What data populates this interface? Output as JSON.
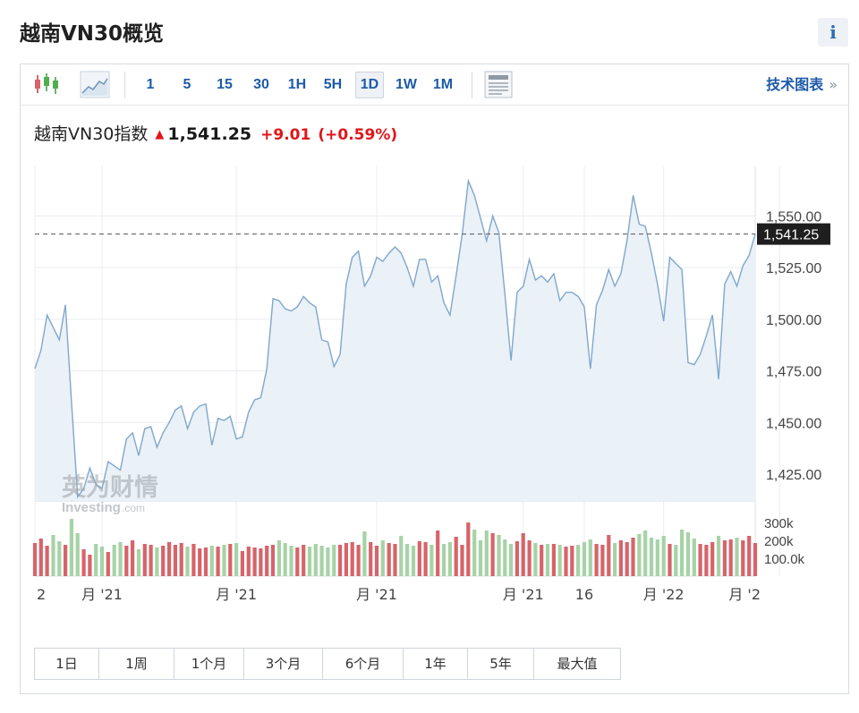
{
  "page": {
    "title": "越南VN30概览",
    "info_label": "i"
  },
  "toolbar": {
    "periods": [
      "1",
      "5",
      "15",
      "30",
      "1H",
      "5H",
      "1D",
      "1W",
      "1M"
    ],
    "active_period": "1D",
    "tech_link_label": "技术图表",
    "tech_link_chevron": "»",
    "icons": [
      "candlestick-icon",
      "area-chart-icon",
      "table-view-icon"
    ]
  },
  "quote": {
    "name": "越南VN30指数",
    "direction_icon": "up-arrow-icon",
    "last": "1,541.25",
    "change": "+9.01",
    "change_pct": "(+0.59%)",
    "color_up": "#e0161b"
  },
  "watermark": {
    "cn": "英为财情",
    "en": "Investing",
    "suffix": ".com"
  },
  "range_buttons": [
    "1日",
    "1周",
    "1个月",
    "3个月",
    "6个月",
    "1年",
    "5年",
    "最大值"
  ],
  "chart_data": {
    "type": "area",
    "ylim": [
      1412,
      1574
    ],
    "price_ticks": [
      {
        "value": 1550,
        "label": "1,550.00"
      },
      {
        "value": 1525,
        "label": "1,525.00"
      },
      {
        "value": 1500,
        "label": "1,500.00"
      },
      {
        "value": 1475,
        "label": "1,475.00"
      },
      {
        "value": 1450,
        "label": "1,450.00"
      },
      {
        "value": 1425,
        "label": "1,425.00"
      }
    ],
    "last_price": 1541.25,
    "last_price_label": "1,541.25",
    "x_labels": [
      {
        "index": 0,
        "label": "2"
      },
      {
        "index": 11,
        "label": "月 '21"
      },
      {
        "index": 33,
        "label": "月 '21"
      },
      {
        "index": 56,
        "label": "月 '21"
      },
      {
        "index": 80,
        "label": "月 '21"
      },
      {
        "index": 90,
        "label": "16"
      },
      {
        "index": 103,
        "label": "月 '22"
      },
      {
        "index": 122,
        "label": "月 '2"
      }
    ],
    "series": [
      {
        "values": [
          1476,
          1485,
          1502,
          1496,
          1490,
          1507,
          1460,
          1414,
          1418,
          1428,
          1420,
          1418,
          1431,
          1429,
          1427,
          1442,
          1445,
          1434,
          1447,
          1448,
          1438,
          1445,
          1450,
          1456,
          1458,
          1447,
          1455,
          1458,
          1459,
          1439,
          1452,
          1451,
          1453,
          1442,
          1443,
          1455,
          1461,
          1462,
          1476,
          1510,
          1509,
          1505,
          1504,
          1506,
          1511,
          1508,
          1506,
          1490,
          1489,
          1477,
          1483,
          1517,
          1530,
          1533,
          1516,
          1521,
          1530,
          1528,
          1532,
          1535,
          1532,
          1525,
          1516,
          1529,
          1529,
          1518,
          1521,
          1508,
          1502,
          1521,
          1541,
          1567,
          1560,
          1549,
          1538,
          1550,
          1542,
          1512,
          1480,
          1513,
          1516,
          1529,
          1519,
          1521,
          1518,
          1522,
          1509,
          1513,
          1513,
          1511,
          1506,
          1476,
          1507,
          1514,
          1524,
          1516,
          1522,
          1538,
          1560,
          1546,
          1545,
          1532,
          1517,
          1499,
          1530,
          1527,
          1524,
          1479,
          1478,
          1483,
          1492,
          1502,
          1471,
          1517,
          1523,
          1516,
          1526,
          1531,
          1541.25
        ]
      },
      {
        "name": "volume",
        "values": [
          185,
          210,
          170,
          230,
          195,
          175,
          320,
          240,
          150,
          120,
          180,
          165,
          135,
          175,
          190,
          170,
          200,
          150,
          180,
          175,
          160,
          170,
          190,
          175,
          185,
          165,
          180,
          155,
          160,
          170,
          165,
          175,
          180,
          185,
          140,
          165,
          160,
          155,
          170,
          175,
          200,
          185,
          170,
          160,
          175,
          165,
          180,
          170,
          160,
          175,
          175,
          185,
          190,
          175,
          250,
          190,
          170,
          200,
          185,
          180,
          225,
          180,
          170,
          195,
          190,
          175,
          255,
          180,
          190,
          220,
          175,
          300,
          260,
          200,
          255,
          240,
          230,
          205,
          180,
          195,
          240,
          200,
          185,
          175,
          180,
          180,
          175,
          165,
          170,
          175,
          190,
          205,
          180,
          175,
          230,
          185,
          200,
          190,
          215,
          235,
          255,
          215,
          205,
          225,
          180,
          175,
          260,
          245,
          210,
          180,
          175,
          190,
          225,
          200,
          205,
          215,
          200,
          225,
          185
        ]
      }
    ],
    "volume_ticks": [
      {
        "value": 300,
        "label": "300k"
      },
      {
        "value": 200,
        "label": "200k"
      },
      {
        "value": 100,
        "label": "100.0k"
      }
    ],
    "volume_max": 360,
    "colors": {
      "line": "#7fa7cc",
      "fill": "#eaf1f7",
      "vol_up": "#d6646a",
      "vol_down": "#a6d3a6",
      "grid": "#e9ecef"
    }
  }
}
